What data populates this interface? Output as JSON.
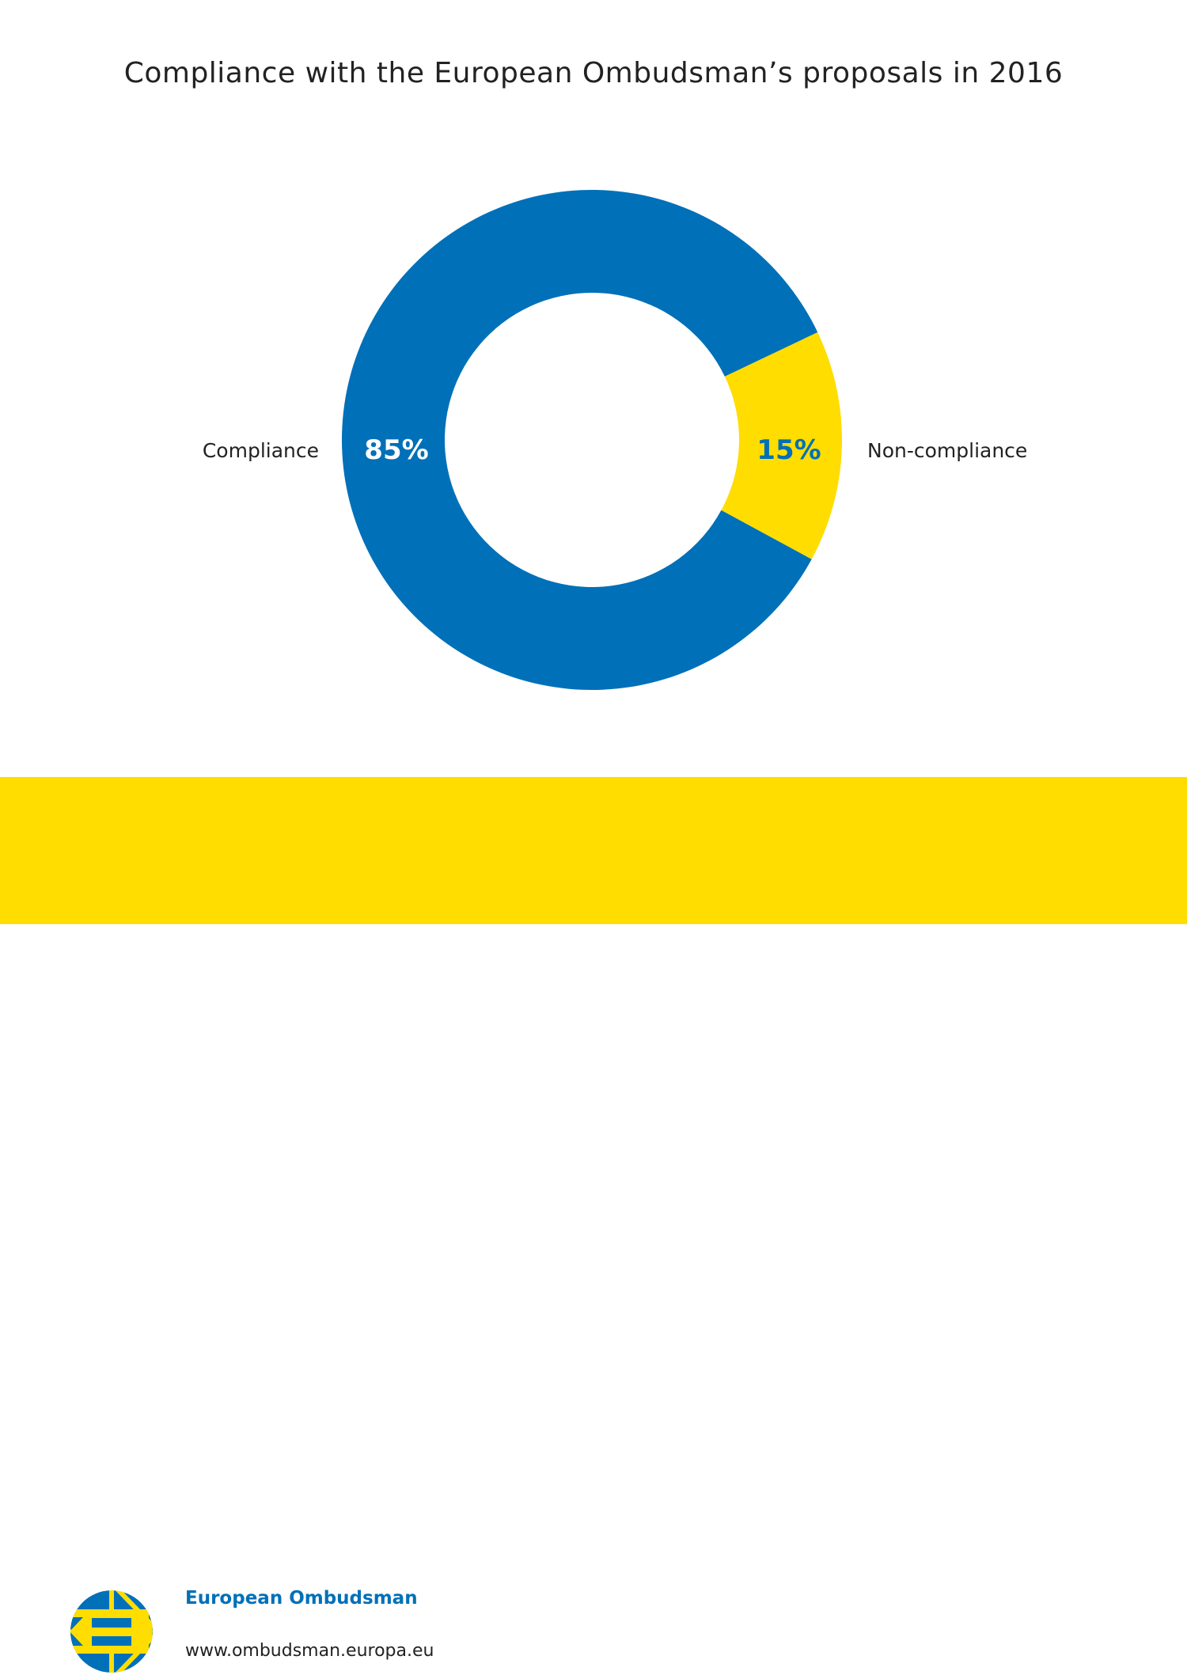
{
  "chart_data": {
    "type": "pie",
    "donut": true,
    "title": "Compliance with the European Ombudsman’s proposals in 2016",
    "categories": [
      "Compliance",
      "Non-compliance"
    ],
    "values": [
      85,
      15
    ],
    "labels": [
      "85%",
      "15%"
    ],
    "colors": [
      "#0070B8",
      "#FFDD00"
    ],
    "label_colors": [
      "#FFFFFF",
      "#0070B8"
    ]
  },
  "footer": {
    "organization": "European Ombudsman",
    "url": "www.ombudsman.europa.eu",
    "logo_icon": "european-ombudsman-logo"
  }
}
